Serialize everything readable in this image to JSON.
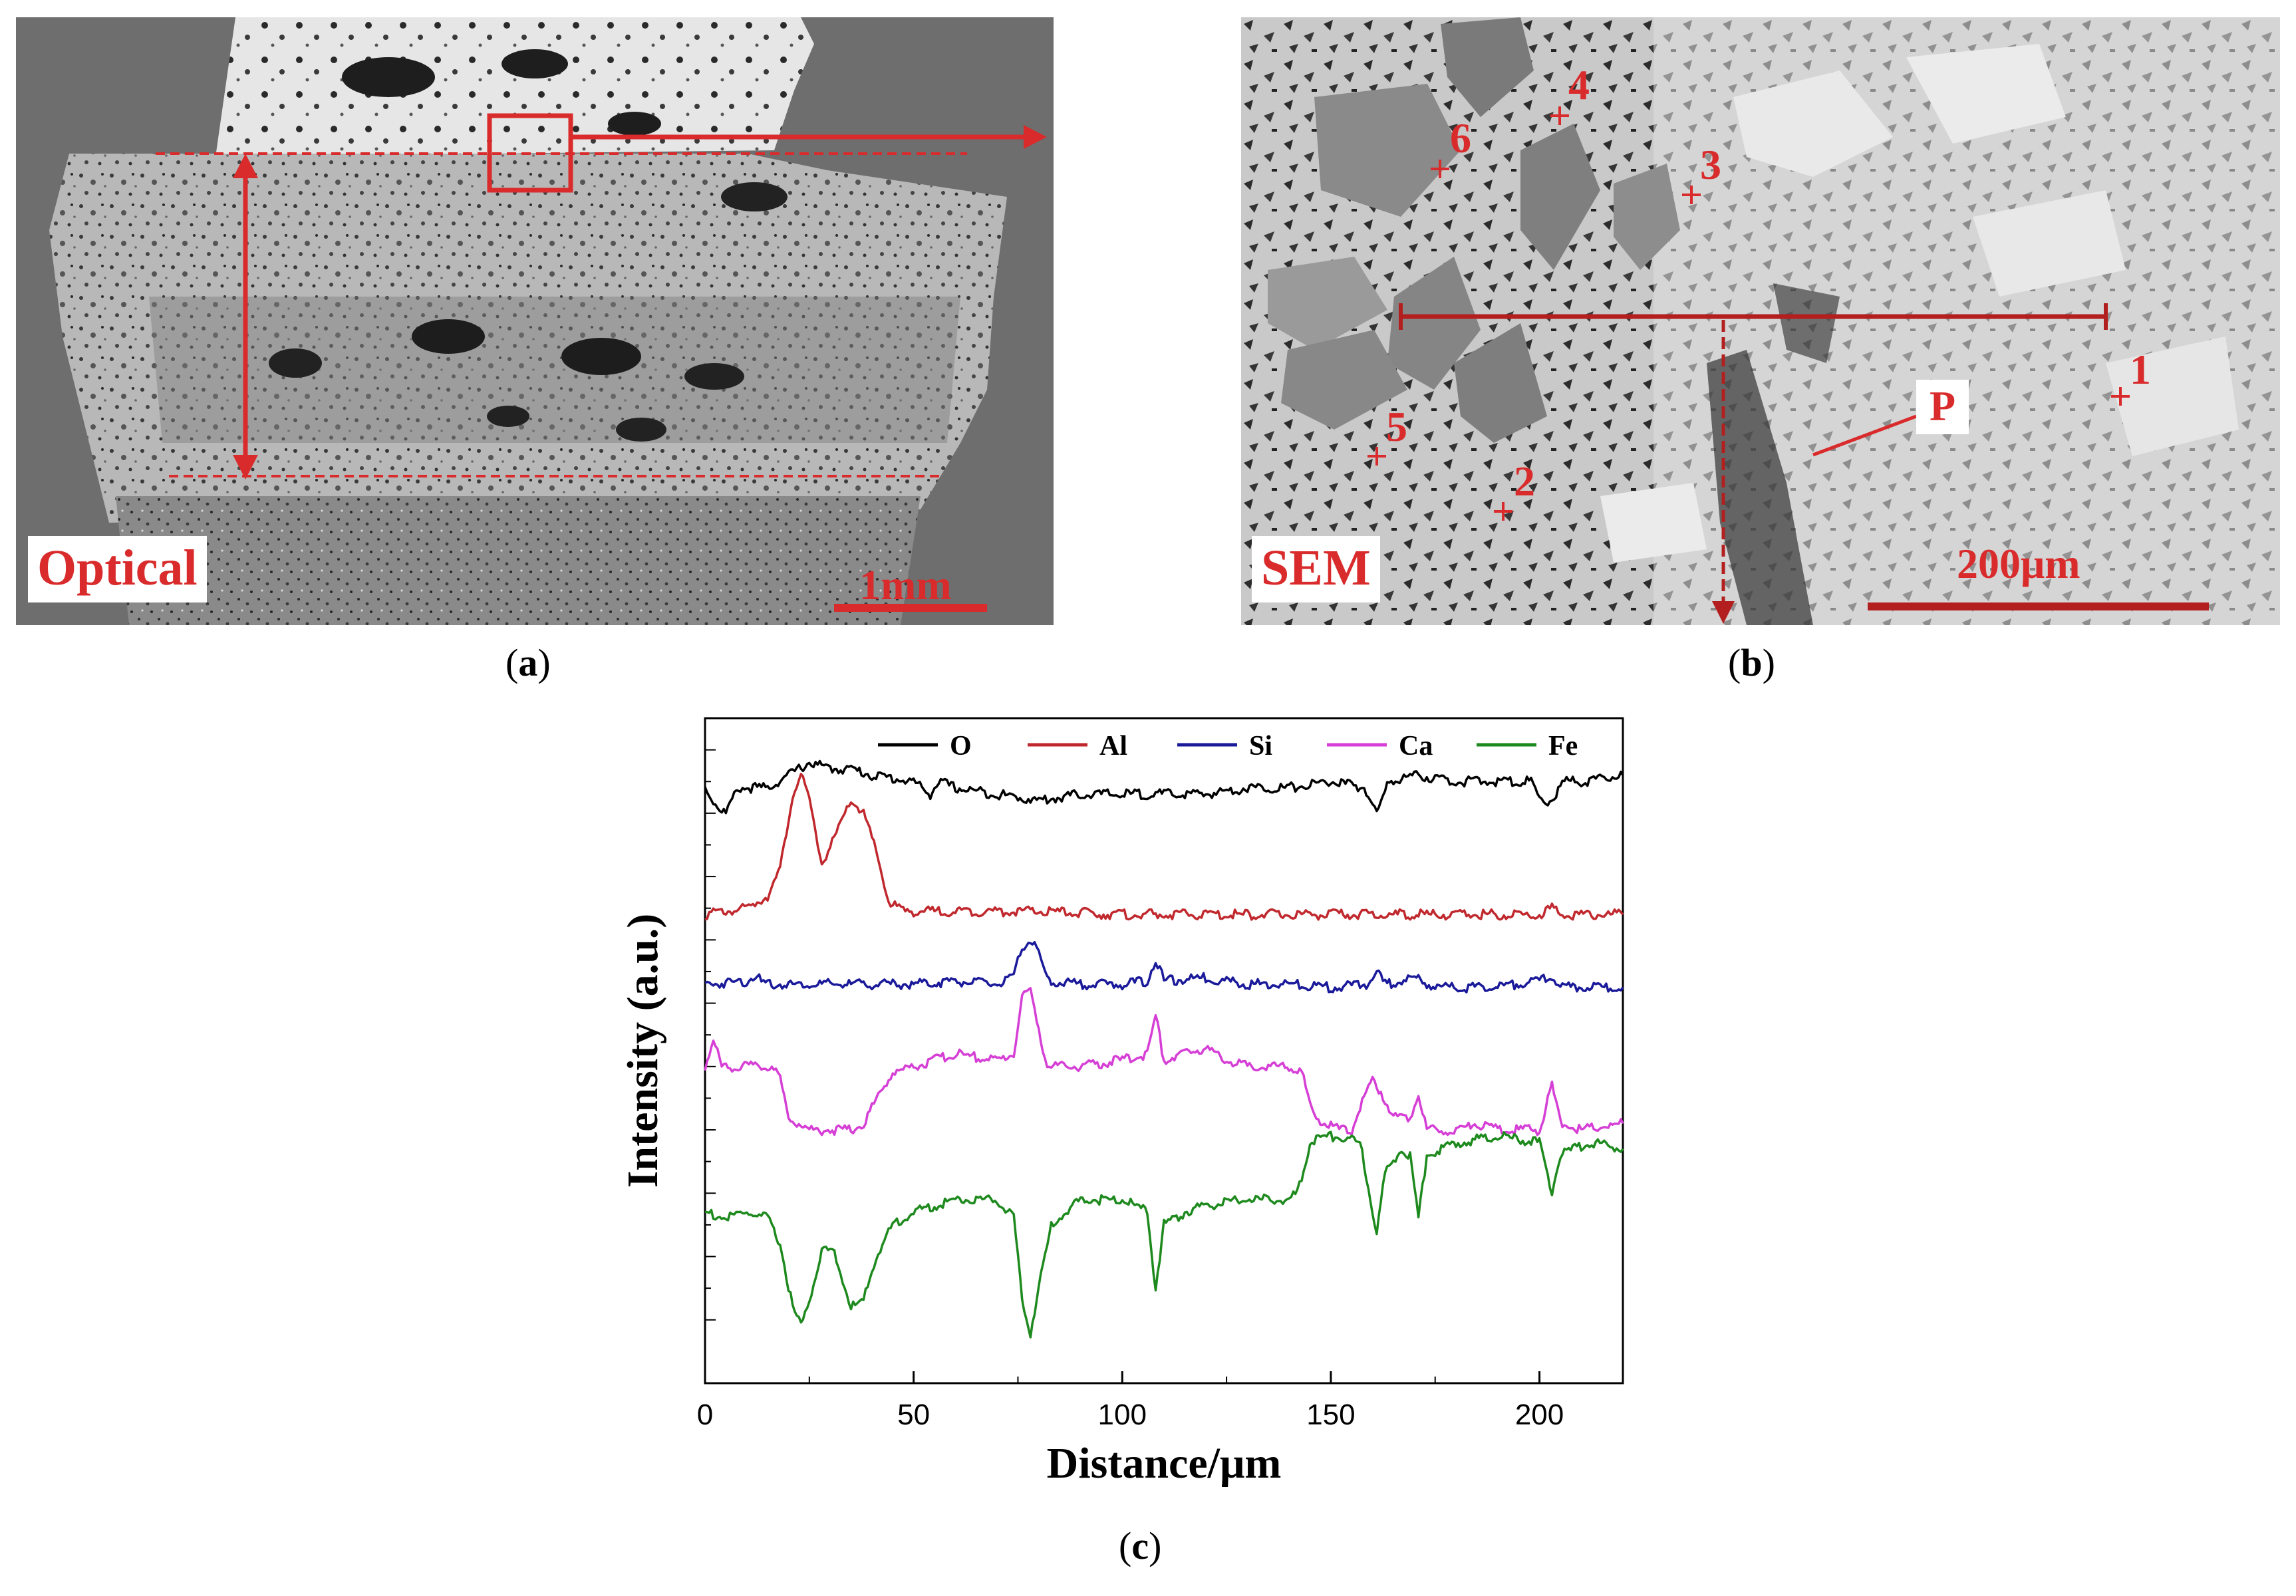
{
  "panel_a": {
    "label": "Optical",
    "scale_bar": "1mm",
    "caption_letter": "a"
  },
  "panel_b": {
    "label": "SEM",
    "scale_bar": "200μm",
    "caption_letter": "b",
    "markers": [
      "1",
      "2",
      "3",
      "4",
      "5",
      "6",
      "P"
    ]
  },
  "panel_c": {
    "caption_letter": "c"
  },
  "chart_data": {
    "type": "line",
    "xlabel": "Distance/μm",
    "ylabel": "Intensity (a.u.)",
    "xlim": [
      0,
      220
    ],
    "x_ticks": [
      0,
      50,
      100,
      150,
      200
    ],
    "y_ticks_labeled": false,
    "legend_position": "top",
    "colors": {
      "O": "#000000",
      "Al": "#c0282d",
      "Si": "#1a1a9a",
      "Ca": "#d63fd6",
      "Fe": "#1e8a1e"
    },
    "series": [
      {
        "name": "O",
        "baseline": 9.4,
        "points": [
          [
            0,
            9.4
          ],
          [
            3,
            9.1
          ],
          [
            5,
            9.0
          ],
          [
            8,
            9.4
          ],
          [
            15,
            9.4
          ],
          [
            20,
            9.6
          ],
          [
            25,
            9.8
          ],
          [
            30,
            9.7
          ],
          [
            35,
            9.7
          ],
          [
            40,
            9.6
          ],
          [
            50,
            9.5
          ],
          [
            54,
            9.3
          ],
          [
            56,
            9.5
          ],
          [
            60,
            9.4
          ],
          [
            70,
            9.3
          ],
          [
            80,
            9.2
          ],
          [
            90,
            9.3
          ],
          [
            100,
            9.3
          ],
          [
            110,
            9.3
          ],
          [
            120,
            9.3
          ],
          [
            130,
            9.4
          ],
          [
            140,
            9.4
          ],
          [
            150,
            9.5
          ],
          [
            158,
            9.4
          ],
          [
            161,
            9.0
          ],
          [
            164,
            9.5
          ],
          [
            170,
            9.6
          ],
          [
            180,
            9.5
          ],
          [
            190,
            9.5
          ],
          [
            198,
            9.5
          ],
          [
            200,
            9.2
          ],
          [
            203,
            9.2
          ],
          [
            206,
            9.5
          ],
          [
            212,
            9.5
          ],
          [
            220,
            9.6
          ]
        ]
      },
      {
        "name": "Al",
        "baseline": 7.4,
        "points": [
          [
            0,
            7.4
          ],
          [
            10,
            7.5
          ],
          [
            15,
            7.7
          ],
          [
            18,
            8.1
          ],
          [
            21,
            9.3
          ],
          [
            23,
            9.6
          ],
          [
            25,
            9.2
          ],
          [
            28,
            8.2
          ],
          [
            31,
            8.6
          ],
          [
            35,
            9.2
          ],
          [
            38,
            9.0
          ],
          [
            41,
            8.4
          ],
          [
            44,
            7.6
          ],
          [
            48,
            7.45
          ],
          [
            60,
            7.45
          ],
          [
            80,
            7.45
          ],
          [
            100,
            7.4
          ],
          [
            120,
            7.4
          ],
          [
            140,
            7.4
          ],
          [
            160,
            7.4
          ],
          [
            180,
            7.4
          ],
          [
            200,
            7.4
          ],
          [
            203,
            7.5
          ],
          [
            205,
            7.4
          ],
          [
            220,
            7.4
          ]
        ]
      },
      {
        "name": "Si",
        "baseline": 6.3,
        "points": [
          [
            0,
            6.3
          ],
          [
            10,
            6.35
          ],
          [
            12,
            6.45
          ],
          [
            14,
            6.3
          ],
          [
            30,
            6.3
          ],
          [
            50,
            6.3
          ],
          [
            60,
            6.35
          ],
          [
            70,
            6.3
          ],
          [
            74,
            6.4
          ],
          [
            76,
            6.9
          ],
          [
            78,
            7.0
          ],
          [
            80,
            6.8
          ],
          [
            82,
            6.35
          ],
          [
            90,
            6.3
          ],
          [
            100,
            6.3
          ],
          [
            106,
            6.35
          ],
          [
            108,
            6.7
          ],
          [
            110,
            6.35
          ],
          [
            120,
            6.4
          ],
          [
            130,
            6.3
          ],
          [
            140,
            6.3
          ],
          [
            150,
            6.25
          ],
          [
            159,
            6.3
          ],
          [
            161,
            6.5
          ],
          [
            163,
            6.3
          ],
          [
            170,
            6.4
          ],
          [
            175,
            6.25
          ],
          [
            190,
            6.25
          ],
          [
            203,
            6.4
          ],
          [
            206,
            6.25
          ],
          [
            220,
            6.25
          ]
        ]
      },
      {
        "name": "Ca",
        "baseline": 5.0,
        "points": [
          [
            0,
            5.0
          ],
          [
            2,
            5.4
          ],
          [
            4,
            5.0
          ],
          [
            10,
            5.0
          ],
          [
            16,
            5.0
          ],
          [
            18,
            4.8
          ],
          [
            20,
            4.2
          ],
          [
            25,
            4.0
          ],
          [
            30,
            4.0
          ],
          [
            35,
            4.0
          ],
          [
            38,
            4.1
          ],
          [
            42,
            4.6
          ],
          [
            45,
            4.9
          ],
          [
            50,
            5.0
          ],
          [
            55,
            5.1
          ],
          [
            60,
            5.2
          ],
          [
            70,
            5.1
          ],
          [
            74,
            5.2
          ],
          [
            76,
            6.1
          ],
          [
            78,
            6.2
          ],
          [
            80,
            5.6
          ],
          [
            82,
            5.0
          ],
          [
            90,
            5.0
          ],
          [
            100,
            5.1
          ],
          [
            106,
            5.2
          ],
          [
            108,
            5.8
          ],
          [
            110,
            5.1
          ],
          [
            115,
            5.2
          ],
          [
            120,
            5.3
          ],
          [
            125,
            5.1
          ],
          [
            130,
            5.0
          ],
          [
            140,
            5.0
          ],
          [
            143,
            4.9
          ],
          [
            146,
            4.2
          ],
          [
            152,
            4.0
          ],
          [
            155,
            4.0
          ],
          [
            158,
            4.5
          ],
          [
            160,
            4.8
          ],
          [
            162,
            4.6
          ],
          [
            165,
            4.2
          ],
          [
            169,
            4.2
          ],
          [
            171,
            4.6
          ],
          [
            173,
            4.0
          ],
          [
            180,
            4.0
          ],
          [
            185,
            4.1
          ],
          [
            190,
            4.0
          ],
          [
            200,
            4.0
          ],
          [
            203,
            4.7
          ],
          [
            205,
            4.1
          ],
          [
            210,
            4.0
          ],
          [
            220,
            4.1
          ]
        ]
      },
      {
        "name": "Fe",
        "baseline": 2.7,
        "points": [
          [
            0,
            2.7
          ],
          [
            5,
            2.6
          ],
          [
            10,
            2.7
          ],
          [
            15,
            2.6
          ],
          [
            18,
            2.2
          ],
          [
            21,
            1.2
          ],
          [
            23,
            0.9
          ],
          [
            25,
            1.3
          ],
          [
            28,
            2.1
          ],
          [
            31,
            2.1
          ],
          [
            33,
            1.6
          ],
          [
            35,
            1.2
          ],
          [
            38,
            1.3
          ],
          [
            41,
            2.0
          ],
          [
            45,
            2.5
          ],
          [
            50,
            2.7
          ],
          [
            55,
            2.8
          ],
          [
            60,
            2.9
          ],
          [
            70,
            2.9
          ],
          [
            74,
            2.6
          ],
          [
            76,
            1.3
          ],
          [
            78,
            0.8
          ],
          [
            80,
            1.5
          ],
          [
            83,
            2.5
          ],
          [
            90,
            2.9
          ],
          [
            100,
            2.9
          ],
          [
            106,
            2.7
          ],
          [
            108,
            1.5
          ],
          [
            110,
            2.5
          ],
          [
            115,
            2.7
          ],
          [
            120,
            2.8
          ],
          [
            130,
            2.9
          ],
          [
            140,
            2.9
          ],
          [
            142,
            3.0
          ],
          [
            145,
            3.8
          ],
          [
            150,
            3.9
          ],
          [
            157,
            3.8
          ],
          [
            159,
            3.1
          ],
          [
            161,
            2.4
          ],
          [
            163,
            3.3
          ],
          [
            167,
            3.7
          ],
          [
            169,
            3.6
          ],
          [
            171,
            2.6
          ],
          [
            173,
            3.6
          ],
          [
            180,
            3.8
          ],
          [
            190,
            3.9
          ],
          [
            200,
            3.8
          ],
          [
            203,
            3.0
          ],
          [
            205,
            3.6
          ],
          [
            212,
            3.8
          ],
          [
            220,
            3.7
          ]
        ]
      }
    ]
  }
}
